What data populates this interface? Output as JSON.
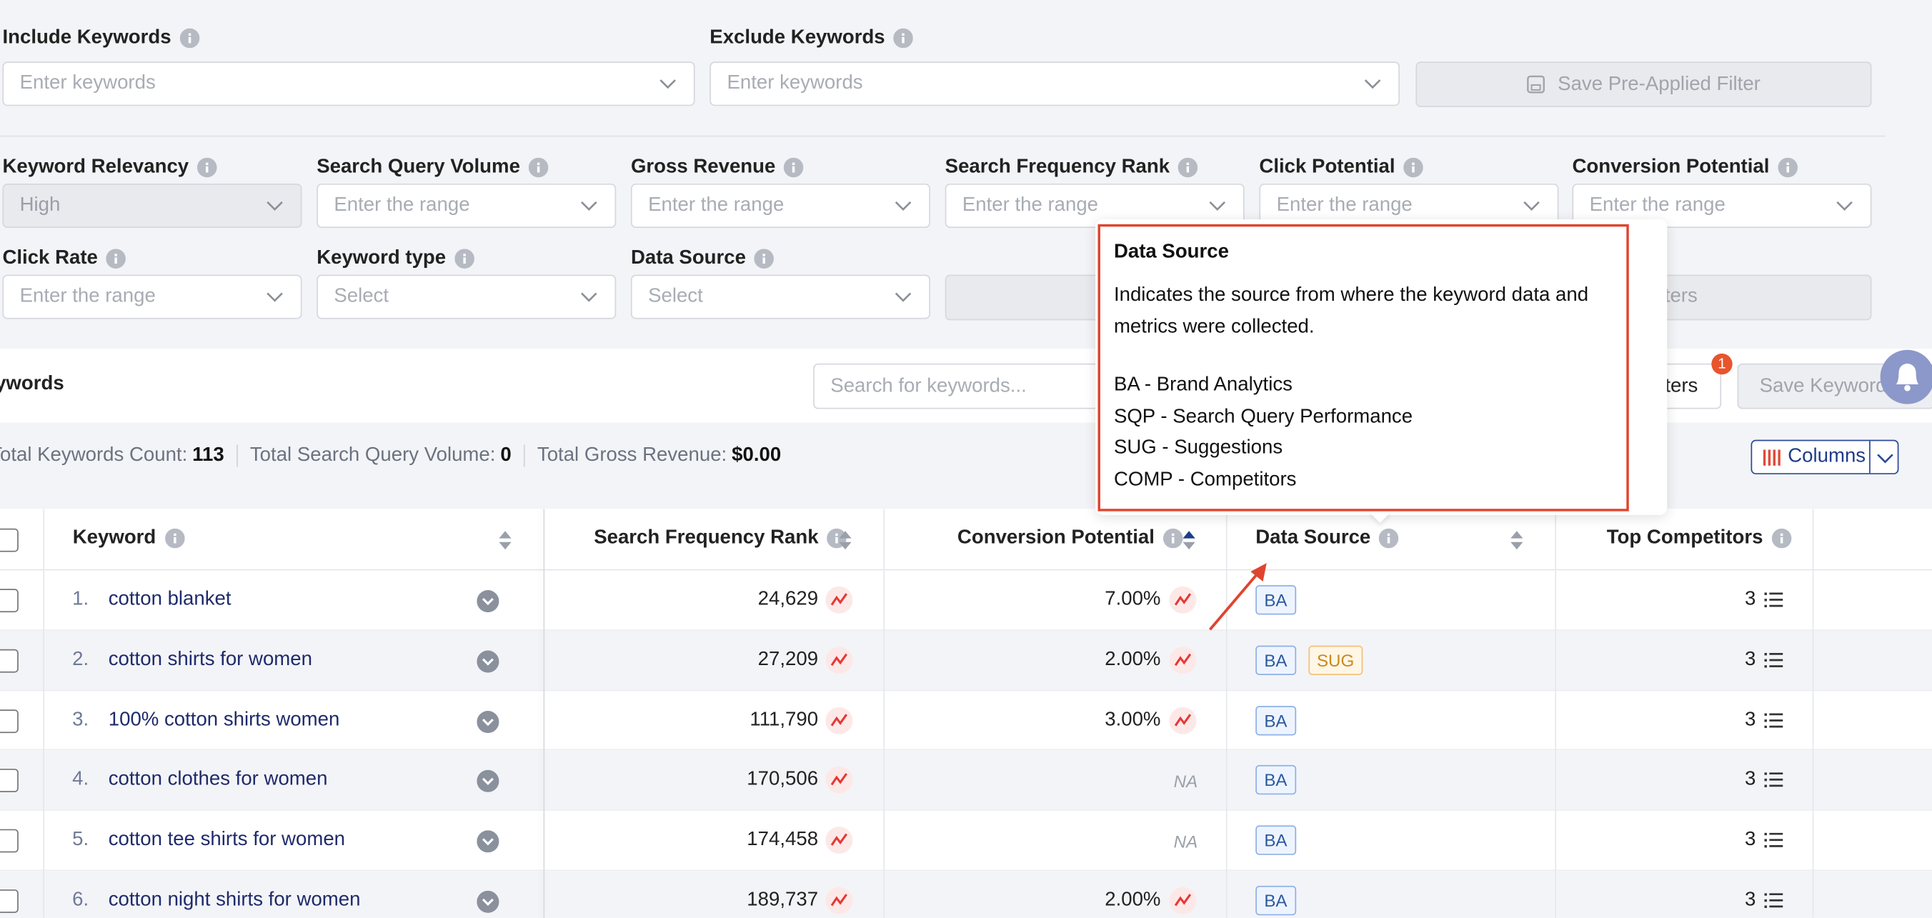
{
  "filters": {
    "row1": [
      {
        "label": "Include Keywords",
        "placeholder": "Enter keywords"
      },
      {
        "label": "Exclude Keywords",
        "placeholder": "Enter keywords"
      }
    ],
    "save_filter": "Save Pre-Applied Filter",
    "row2": [
      {
        "label": "Keyword Relevancy",
        "placeholder": "High"
      },
      {
        "label": "Search Query Volume",
        "placeholder": "Enter the range"
      },
      {
        "label": "Gross Revenue",
        "placeholder": "Enter the range"
      },
      {
        "label": "Search Frequency Rank",
        "placeholder": "Enter the range"
      },
      {
        "label": "Click Potential",
        "placeholder": "Enter the range"
      },
      {
        "label": "Conversion Potential",
        "placeholder": "Enter the range"
      }
    ],
    "row3": [
      {
        "label": "Click Rate",
        "placeholder": "Enter the range"
      },
      {
        "label": "Keyword type",
        "placeholder": "Select"
      },
      {
        "label": "Data Source",
        "placeholder": "Select"
      }
    ],
    "row3_button": "ters"
  },
  "toolbar": {
    "title": "Keywords",
    "search": "Search for keywords...",
    "filters_button": "ters",
    "badge": "1",
    "save_button": "Save Keywords"
  },
  "summary": [
    {
      "label": "Total Keywords Count:",
      "value": "113"
    },
    {
      "label": "Total Search Query Volume:",
      "value": "0"
    },
    {
      "label": "Total Gross Revenue:",
      "value": "$0.00"
    }
  ],
  "columns_button": "Columns",
  "table": {
    "headers": [
      "Keyword",
      "Search Frequency Rank",
      "Conversion Potential",
      "Data Source",
      "Top Competitors"
    ],
    "rows": [
      {
        "index": "1.",
        "keyword": "cotton blanket",
        "search_frequency_rank": "24,629",
        "conversion_potential": "7.00%",
        "data_sources": [
          "BA"
        ],
        "top_competitors": "3"
      },
      {
        "index": "2.",
        "keyword": "cotton shirts for women",
        "search_frequency_rank": "27,209",
        "conversion_potential": "2.00%",
        "data_sources": [
          "BA",
          "SUG"
        ],
        "top_competitors": "3"
      },
      {
        "index": "3.",
        "keyword": "100% cotton shirts women",
        "search_frequency_rank": "111,790",
        "conversion_potential": "3.00%",
        "data_sources": [
          "BA"
        ],
        "top_competitors": "3"
      },
      {
        "index": "4.",
        "keyword": "cotton clothes for women",
        "search_frequency_rank": "170,506",
        "conversion_potential": "NA",
        "data_sources": [
          "BA"
        ],
        "top_competitors": "3"
      },
      {
        "index": "5.",
        "keyword": "cotton tee shirts for women",
        "search_frequency_rank": "174,458",
        "conversion_potential": "NA",
        "data_sources": [
          "BA"
        ],
        "top_competitors": "3"
      },
      {
        "index": "6.",
        "keyword": "cotton night shirts for women",
        "search_frequency_rank": "189,737",
        "conversion_potential": "2.00%",
        "data_sources": [
          "BA"
        ],
        "top_competitors": "3"
      }
    ]
  },
  "tooltip": {
    "title": "Data Source",
    "description": "Indicates the source from where the keyword data and metrics were collected.",
    "items": [
      "BA - Brand Analytics",
      "SQP - Search Query Performance",
      "SUG - Suggestions",
      "COMP - Competitors"
    ]
  }
}
